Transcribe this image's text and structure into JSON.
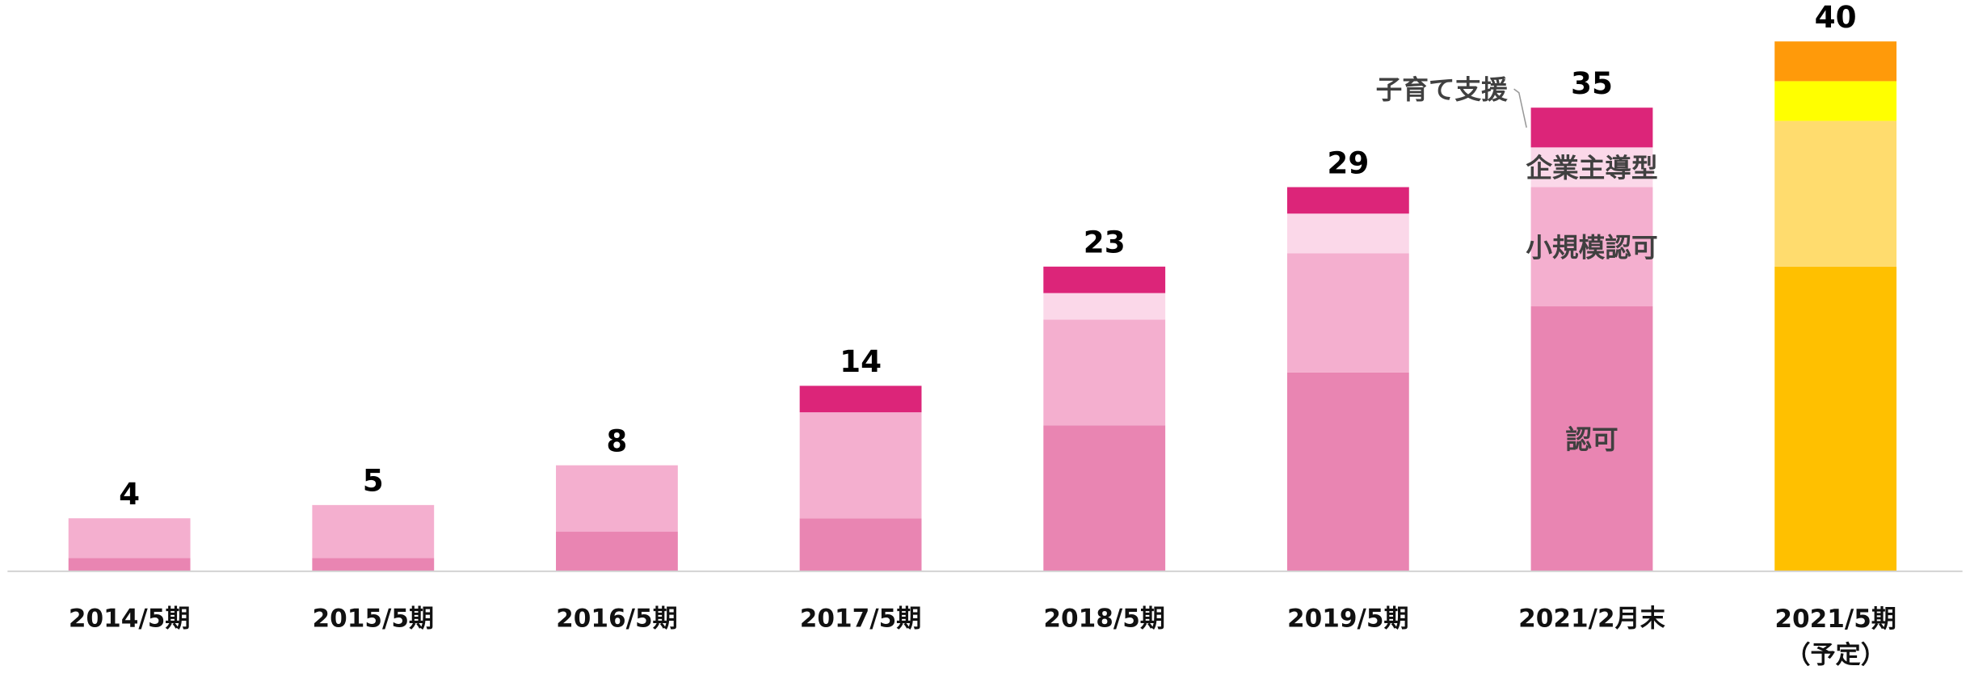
{
  "chart_data": {
    "type": "stacked_bar",
    "categories": [
      "2014/5期",
      "2015/5期",
      "2016/5期",
      "2017/5期",
      "2018/5期",
      "2019/5期",
      "2021/2月末",
      "2021/5期\n（予定）"
    ],
    "series": [
      {
        "name": "認可",
        "color": "#e985b2",
        "colors": [
          "#e985b2",
          "#e985b2",
          "#e985b2",
          "#e985b2",
          "#e985b2",
          "#e985b2",
          "#e985b2",
          "#ffc000"
        ],
        "values": [
          1,
          1,
          3,
          4,
          11,
          15,
          20,
          23
        ]
      },
      {
        "name": "小規模認可",
        "color": "#f4afcf",
        "colors": [
          "#f4afcf",
          "#f4afcf",
          "#f4afcf",
          "#f4afcf",
          "#f4afcf",
          "#f4afcf",
          "#f4afcf",
          "#ffdc6e"
        ],
        "values": [
          3,
          4,
          5,
          8,
          8,
          9,
          9,
          11
        ]
      },
      {
        "name": "企業主導型",
        "color": "#fbd8e9",
        "colors": [
          "#fbd8e9",
          "#fbd8e9",
          "#fbd8e9",
          "#fbd8e9",
          "#fbd8e9",
          "#fbd8e9",
          "#fbd8e9",
          "#ffff00"
        ],
        "values": [
          0,
          0,
          0,
          0,
          2,
          3,
          3,
          3
        ]
      },
      {
        "name": "子育て支援",
        "color": "#dc2579",
        "colors": [
          "#dc2579",
          "#dc2579",
          "#dc2579",
          "#dc2579",
          "#dc2579",
          "#dc2579",
          "#dc2579",
          "#ff9a0a"
        ],
        "values": [
          0,
          0,
          0,
          2,
          2,
          2,
          3,
          3
        ]
      }
    ],
    "totals": [
      4,
      5,
      8,
      14,
      23,
      29,
      35,
      40
    ],
    "ylim": [
      0,
      42
    ]
  }
}
